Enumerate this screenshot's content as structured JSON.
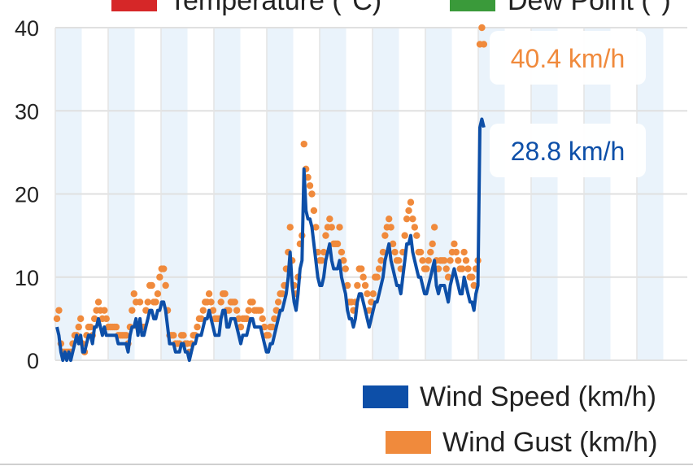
{
  "top_legend": [
    {
      "label": "Temperature (°C)",
      "color": "#d62728"
    },
    {
      "label": "Dew Point (°)",
      "color": "#3a9a3a"
    }
  ],
  "chart_data": {
    "type": "line",
    "ylim": [
      0,
      40
    ],
    "y_ticks": [
      "0",
      "10",
      "20",
      "30",
      "40"
    ],
    "x_count": 215,
    "grid": true,
    "legend_position": "bottom-right",
    "series": [
      {
        "name": "Wind Speed (km/h)",
        "color": "#0d4fa8",
        "values": [
          4,
          3,
          1,
          0,
          1,
          0,
          1,
          0,
          1,
          2,
          3,
          2,
          3,
          1,
          1,
          2,
          3,
          3,
          2,
          4,
          4,
          5,
          4,
          3,
          4,
          3,
          3,
          3,
          3,
          3,
          3,
          2,
          2,
          2,
          2,
          2,
          1,
          3,
          4,
          4,
          5,
          3,
          5,
          3,
          3,
          4,
          5,
          6,
          6,
          5,
          5,
          6,
          6,
          7,
          7,
          6,
          4,
          2,
          2,
          2,
          1,
          1,
          1,
          2,
          2,
          1,
          1,
          0,
          1,
          2,
          2,
          3,
          3,
          3,
          4,
          5,
          5,
          6,
          5,
          4,
          3,
          3,
          3,
          5,
          6,
          6,
          4,
          4,
          5,
          5,
          5,
          4,
          3,
          2,
          3,
          3,
          3,
          4,
          5,
          5,
          4,
          4,
          4,
          4,
          3,
          2,
          1,
          1,
          2,
          2,
          3,
          4,
          5,
          6,
          6,
          7,
          8,
          10,
          13,
          9,
          7,
          6,
          8,
          11,
          12,
          23,
          18,
          17,
          17,
          16,
          14,
          12,
          10,
          9,
          9,
          10,
          12,
          13,
          14,
          12,
          11,
          11,
          11,
          12,
          10,
          9,
          8,
          6,
          5,
          5,
          4,
          5,
          7,
          8,
          8,
          7,
          6,
          5,
          4,
          5,
          6,
          7,
          7,
          8,
          9,
          10,
          12,
          13,
          14,
          12,
          11,
          10,
          9,
          9,
          8,
          10,
          12,
          14,
          14,
          15,
          13,
          12,
          11,
          10,
          10,
          9,
          8,
          8,
          9,
          10,
          11,
          12,
          9,
          8,
          9,
          9,
          9,
          8,
          7,
          9,
          10,
          11,
          10,
          9,
          8,
          8,
          10,
          9,
          8,
          7,
          7,
          6,
          8,
          9,
          28,
          29,
          28
        ],
        "last_label": "28.8 km/h"
      },
      {
        "name": "Wind Gust (km/h)",
        "color": "#f08a3c",
        "values": [
          5,
          6,
          2,
          1,
          1,
          1,
          1,
          1,
          2,
          3,
          3,
          4,
          5,
          2,
          1,
          3,
          4,
          4,
          3,
          5,
          6,
          7,
          6,
          5,
          6,
          5,
          4,
          4,
          4,
          4,
          4,
          3,
          3,
          3,
          3,
          3,
          2,
          4,
          6,
          8,
          7,
          4,
          7,
          4,
          4,
          6,
          7,
          9,
          9,
          7,
          7,
          8,
          10,
          11,
          11,
          9,
          6,
          3,
          3,
          3,
          2,
          2,
          2,
          3,
          3,
          2,
          2,
          1,
          2,
          3,
          3,
          4,
          5,
          5,
          6,
          7,
          7,
          8,
          7,
          6,
          5,
          5,
          5,
          7,
          8,
          8,
          6,
          6,
          7,
          7,
          7,
          6,
          5,
          4,
          5,
          5,
          5,
          6,
          7,
          7,
          6,
          6,
          6,
          6,
          5,
          4,
          3,
          3,
          4,
          4,
          5,
          6,
          7,
          8,
          8,
          9,
          11,
          13,
          16,
          12,
          9,
          8,
          10,
          14,
          15,
          26,
          23,
          22,
          21,
          20,
          18,
          16,
          13,
          12,
          12,
          13,
          15,
          16,
          17,
          16,
          14,
          14,
          14,
          16,
          13,
          12,
          11,
          9,
          7,
          7,
          6,
          7,
          9,
          11,
          11,
          10,
          9,
          8,
          6,
          7,
          8,
          10,
          10,
          11,
          12,
          13,
          15,
          16,
          17,
          16,
          14,
          13,
          12,
          12,
          11,
          13,
          15,
          17,
          18,
          19,
          17,
          16,
          15,
          13,
          13,
          12,
          11,
          11,
          12,
          13,
          14,
          16,
          12,
          11,
          12,
          12,
          12,
          11,
          10,
          12,
          13,
          14,
          13,
          12,
          11,
          11,
          13,
          12,
          11,
          10,
          10,
          9,
          11,
          12,
          38,
          40,
          38
        ],
        "last_label": "40.4 km/h"
      }
    ]
  }
}
